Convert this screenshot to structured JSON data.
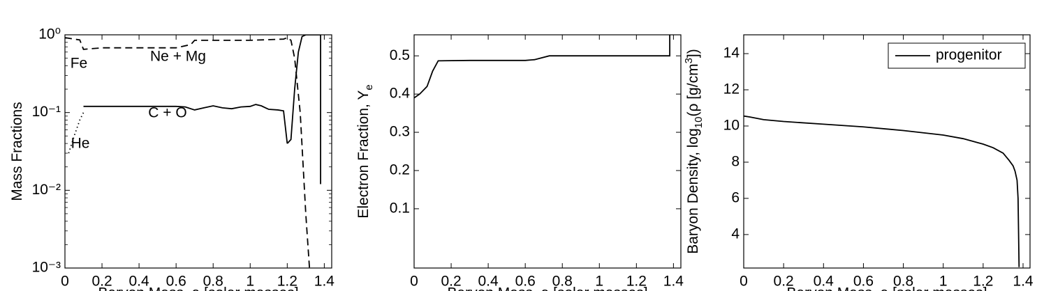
{
  "chart_data": [
    {
      "type": "line",
      "log_y": true,
      "legend": false,
      "xlabel": "Baryon Mass, a [solar masses]",
      "ylabel": [
        {
          "text": "Mass Fractions",
          "baseline": "normal"
        }
      ],
      "xlim": [
        0,
        1.44
      ],
      "xticks": [
        0,
        0.2,
        0.4,
        0.6,
        0.8,
        1,
        1.2,
        1.4
      ],
      "ylim": [
        0.001,
        1
      ],
      "yticks": [
        {
          "value": 0.001,
          "label": "10⁻³"
        },
        {
          "value": 0.01,
          "label": "10⁻²"
        },
        {
          "value": 0.1,
          "label": "10⁻¹"
        },
        {
          "value": 1,
          "label": "10⁰"
        }
      ],
      "series": [
        {
          "name": "Fe",
          "color": "#000000",
          "dash": "solid",
          "x": [
            1.2,
            1.22,
            1.24,
            1.26,
            1.28,
            1.3,
            1.38,
            1.38
          ],
          "values": [
            0.04,
            0.045,
            0.2,
            0.6,
            0.95,
            1,
            1,
            0.012
          ]
        },
        {
          "name": "Ne + Mg",
          "color": "#000000",
          "dash": "dashed",
          "x": [
            0,
            0.05,
            0.08,
            0.1,
            0.2,
            0.6,
            0.68,
            0.7,
            1.0,
            1.18,
            1.2,
            1.22,
            1.24,
            1.27,
            1.3,
            1.32
          ],
          "values": [
            0.92,
            0.88,
            0.86,
            0.65,
            0.68,
            0.68,
            0.75,
            0.85,
            0.85,
            0.88,
            0.92,
            0.85,
            0.5,
            0.1,
            0.005,
            0.001
          ]
        },
        {
          "name": "C + O",
          "color": "#000000",
          "dash": "solid",
          "x": [
            0.1,
            0.6,
            0.65,
            0.7,
            0.75,
            0.8,
            0.85,
            0.9,
            0.95,
            1.0,
            1.03,
            1.06,
            1.1,
            1.15,
            1.18,
            1.2
          ],
          "values": [
            0.12,
            0.12,
            0.118,
            0.108,
            0.115,
            0.122,
            0.115,
            0.112,
            0.118,
            0.12,
            0.127,
            0.122,
            0.11,
            0.108,
            0.105,
            0.04
          ]
        },
        {
          "name": "He",
          "color": "#000000",
          "dash": "dotted",
          "x": [
            0.02,
            0.05,
            0.08,
            0.1
          ],
          "values": [
            0.03,
            0.05,
            0.08,
            0.1
          ]
        }
      ]
    },
    {
      "type": "line",
      "log_y": false,
      "legend": false,
      "xlabel": "Baryon Mass, a [solar masses]",
      "ylabel": [
        {
          "text": "Electron Fraction, Y",
          "baseline": "normal"
        },
        {
          "text": "e",
          "baseline": "sub"
        }
      ],
      "xlim": [
        0,
        1.44
      ],
      "xticks": [
        0,
        0.2,
        0.4,
        0.6,
        0.8,
        1,
        1.2,
        1.4
      ],
      "ylim": [
        -0.055,
        0.555
      ],
      "yticks": [
        0.1,
        0.2,
        0.3,
        0.4,
        0.5
      ],
      "series": [
        {
          "name": "Ye",
          "color": "#000000",
          "dash": "solid",
          "x": [
            0,
            0.03,
            0.07,
            0.1,
            0.13,
            0.3,
            0.6,
            0.65,
            0.73,
            1.37,
            1.38,
            1.38
          ],
          "values": [
            0.39,
            0.4,
            0.42,
            0.46,
            0.487,
            0.488,
            0.488,
            0.49,
            0.5,
            0.5,
            0.5,
            0.555
          ]
        }
      ]
    },
    {
      "type": "line",
      "log_y": false,
      "legend": true,
      "xlabel": "Baryon Mass, a [solar masses]",
      "ylabel": [
        {
          "text": "Baryon Density, log",
          "baseline": "normal"
        },
        {
          "text": "10",
          "baseline": "sub"
        },
        {
          "text": "(ρ [g/cm",
          "baseline": "normal"
        },
        {
          "text": "3",
          "baseline": "super"
        },
        {
          "text": "])",
          "baseline": "normal"
        }
      ],
      "xlim": [
        0,
        1.435
      ],
      "xticks": [
        0,
        0.2,
        0.4,
        0.6,
        0.8,
        1,
        1.2,
        1.4
      ],
      "ylim": [
        2.15,
        15.04
      ],
      "yticks": [
        4,
        6,
        8,
        10,
        12,
        14
      ],
      "series": [
        {
          "name": "progenitor",
          "color": "#000000",
          "dash": "solid",
          "x": [
            0,
            0.03,
            0.1,
            0.2,
            0.4,
            0.6,
            0.8,
            1.0,
            1.1,
            1.2,
            1.25,
            1.3,
            1.33,
            1.35,
            1.36,
            1.37,
            1.375,
            1.38
          ],
          "values": [
            10.55,
            10.5,
            10.35,
            10.25,
            10.1,
            9.95,
            9.75,
            9.5,
            9.3,
            9.0,
            8.8,
            8.5,
            8.1,
            7.8,
            7.5,
            7.0,
            6.0,
            2.2
          ]
        }
      ]
    }
  ]
}
